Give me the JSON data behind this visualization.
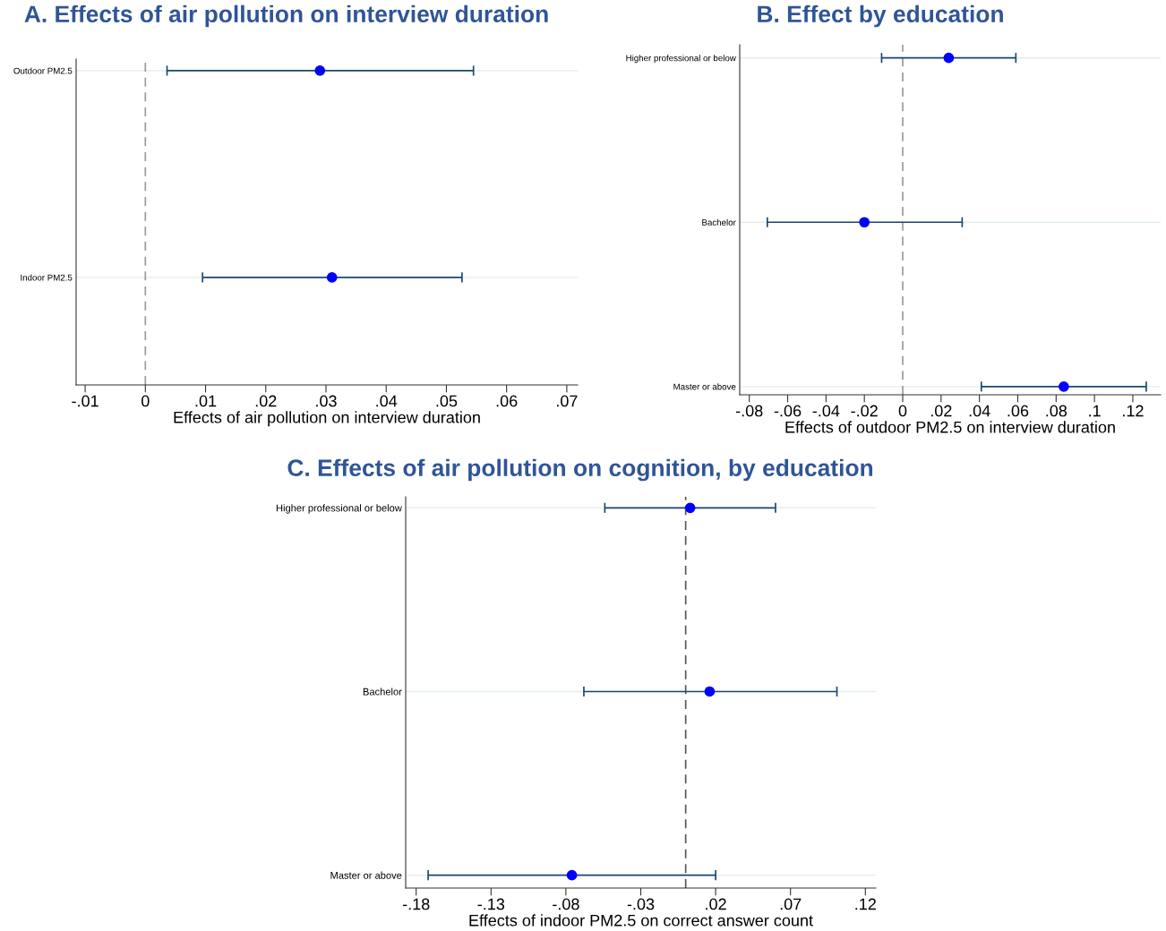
{
  "chart_data": [
    {
      "type": "scatter",
      "orientation": "horizontal",
      "title": "A. Effects of air pollution on interview duration",
      "xlabel": "Effects of air pollution on interview duration",
      "categories": [
        "Outdoor PM2.5",
        "Indoor PM2.5"
      ],
      "series": [
        {
          "color": "#0000ff",
          "values": [
            0.029,
            0.031
          ],
          "errors": [
            [
              0.0036,
              0.0545
            ],
            [
              0.0095,
              0.0526
            ]
          ]
        }
      ],
      "xlim": [
        -0.0115,
        0.0718
      ],
      "xticks": [
        {
          "value": -0.01,
          "label": "-.01"
        },
        0,
        {
          "value": 0.01,
          "label": ".01"
        },
        {
          "value": 0.02,
          "label": ".02"
        },
        {
          "value": 0.03,
          "label": ".03"
        },
        {
          "value": 0.04,
          "label": ".04"
        },
        {
          "value": 0.05,
          "label": ".05"
        },
        {
          "value": 0.06,
          "label": ".06"
        },
        {
          "value": 0.07,
          "label": ".07"
        }
      ],
      "ref_lines": [
        {
          "axis": "x",
          "value": 0,
          "color": "#999999",
          "line_style": "dashed"
        }
      ],
      "grid": "y",
      "marker": "circle"
    },
    {
      "type": "scatter",
      "orientation": "horizontal",
      "title": "B. Effect by education",
      "xlabel": "Effects of outdoor PM2.5 on interview duration",
      "categories": [
        "Higher professional or below",
        "Bachelor",
        "Master or above"
      ],
      "series": [
        {
          "color": "#0000ff",
          "values": [
            0.024,
            -0.02,
            0.084
          ],
          "errors": [
            [
              -0.011,
              0.059
            ],
            [
              -0.0706,
              0.031
            ],
            [
              0.041,
              0.127
            ]
          ]
        }
      ],
      "xlim": [
        -0.085,
        0.1345
      ],
      "xticks": [
        {
          "value": -0.08,
          "label": "-.08"
        },
        {
          "value": -0.06,
          "label": "-.06"
        },
        {
          "value": -0.04,
          "label": "-.04"
        },
        {
          "value": -0.02,
          "label": "-.02"
        },
        0,
        {
          "value": 0.02,
          "label": ".02"
        },
        {
          "value": 0.04,
          "label": ".04"
        },
        {
          "value": 0.06,
          "label": ".06"
        },
        {
          "value": 0.08,
          "label": ".08"
        },
        {
          "value": 0.1,
          "label": ".1"
        },
        {
          "value": 0.12,
          "label": ".12"
        }
      ],
      "ref_lines": [
        {
          "axis": "x",
          "value": 0,
          "color": "#999999",
          "line_style": "dashed"
        }
      ],
      "grid": "y",
      "marker": "circle"
    },
    {
      "type": "scatter",
      "orientation": "horizontal",
      "title": "C. Effects of air pollution on cognition, by education",
      "xlabel": "Effects of indoor PM2.5 on correct answer count",
      "categories": [
        "Higher professional or below",
        "Bachelor",
        "Master or above"
      ],
      "series": [
        {
          "color": "#0000ff",
          "values": [
            0.003,
            0.016,
            -0.076
          ],
          "errors": [
            [
              -0.054,
              0.06
            ],
            [
              -0.068,
              0.101
            ],
            [
              -0.172,
              0.02
            ]
          ]
        }
      ],
      "xlim": [
        -0.187,
        0.127
      ],
      "xticks": [
        {
          "value": -0.18,
          "label": "-.18"
        },
        {
          "value": -0.13,
          "label": "-.13"
        },
        {
          "value": -0.08,
          "label": "-.08"
        },
        {
          "value": -0.03,
          "label": "-.03"
        },
        {
          "value": 0.02,
          "label": ".02"
        },
        {
          "value": 0.07,
          "label": ".07"
        },
        {
          "value": 0.12,
          "label": ".12"
        }
      ],
      "ref_lines": [
        {
          "axis": "x",
          "value": 0,
          "color": "#555555",
          "line_style": "dashed"
        }
      ],
      "grid": "y",
      "marker": "circle"
    }
  ]
}
